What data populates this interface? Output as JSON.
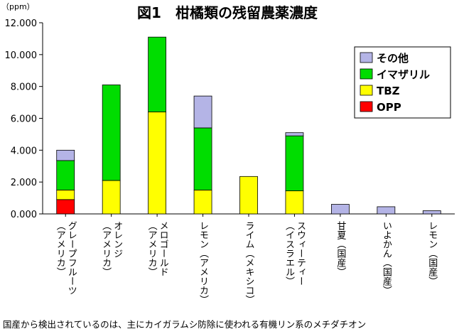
{
  "chart_data": {
    "type": "bar",
    "stacked": true,
    "title": "図1　柑橘類の残留農薬濃度",
    "unit_label": "（ppm）",
    "ylim": [
      0,
      12
    ],
    "yticks": [
      0,
      2,
      4,
      6,
      8,
      10,
      12
    ],
    "ytick_labels": [
      "0.000",
      "2.000",
      "4.000",
      "6.000",
      "8.000",
      "10.000",
      "12.000"
    ],
    "grid": false,
    "legend_position": "top-right",
    "categories": [
      "グレープフルーツ（アメリカ）",
      "オレンジ（アメリカ）",
      "メロゴールド（アメリカ）",
      "レモン（アメリカ）",
      "ライム（メキシコ）",
      "スウィーティー（イスラエル）",
      "甘夏（国産）",
      "いよかん（国産）",
      "レモン（国産）"
    ],
    "category_lines": [
      [
        "グレープフルーツ",
        "（アメリカ）"
      ],
      [
        "オレンジ",
        "（アメリカ）"
      ],
      [
        "メロゴールド",
        "（アメリカ）"
      ],
      [
        "レモン（アメリカ）"
      ],
      [
        "ライム（メキシコ）"
      ],
      [
        "スウィーティー",
        "（イスラエル）"
      ],
      [
        "甘夏（国産）"
      ],
      [
        "いよかん（国産）"
      ],
      [
        "レモン（国産）"
      ]
    ],
    "series": [
      {
        "name": "OPP",
        "color": "#ff0000",
        "values": [
          0.9,
          0,
          0,
          0,
          0,
          0,
          0,
          0,
          0
        ]
      },
      {
        "name": "TBZ",
        "color": "#ffff00",
        "values": [
          0.6,
          2.1,
          6.4,
          1.5,
          2.35,
          1.45,
          0,
          0,
          0
        ]
      },
      {
        "name": "イマザリル",
        "color": "#00dd00",
        "values": [
          1.85,
          6.0,
          4.7,
          3.9,
          0,
          3.45,
          0,
          0,
          0
        ]
      },
      {
        "name": "その他",
        "color": "#b4b4e6",
        "values": [
          0.65,
          0,
          0,
          2.0,
          0,
          0.2,
          0.6,
          0.45,
          0.2
        ]
      }
    ],
    "legend_order": [
      "その他",
      "イマザリル",
      "TBZ",
      "OPP"
    ]
  },
  "footnote": "国産から検出されているのは、主にカイガラムシ防除に使われる有機リン系のメチダチオン"
}
